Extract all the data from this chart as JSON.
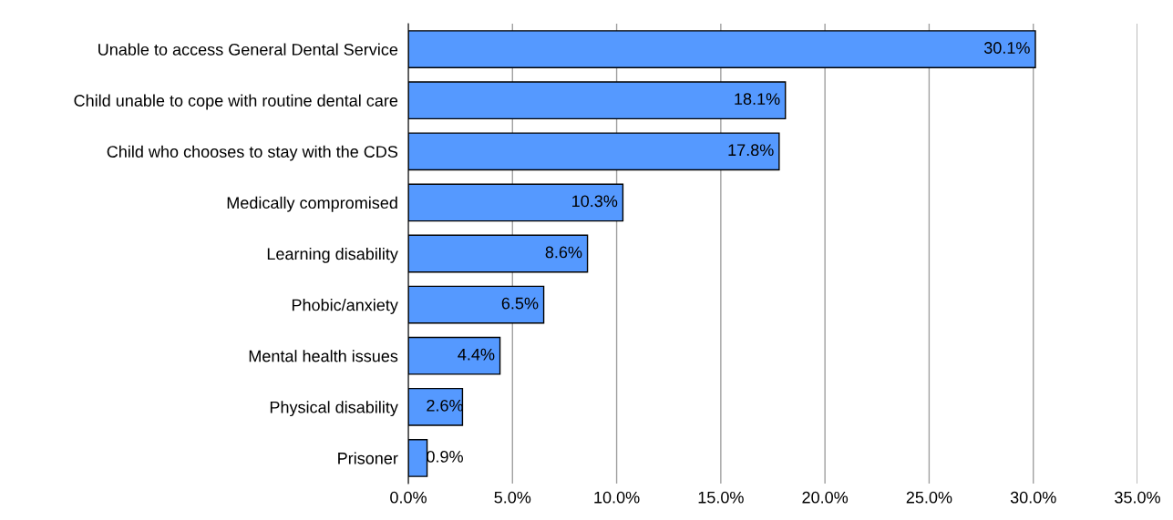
{
  "chart_data": {
    "type": "bar",
    "orientation": "horizontal",
    "categories": [
      "Unable to access General Dental Service",
      "Child unable to cope with routine dental care",
      "Child who chooses to stay with the CDS",
      "Medically compromised",
      "Learning disability",
      "Phobic/anxiety",
      "Mental health issues",
      "Physical disability",
      "Prisoner"
    ],
    "values": [
      30.1,
      18.1,
      17.8,
      10.3,
      8.6,
      6.5,
      4.4,
      2.6,
      0.9
    ],
    "value_labels": [
      "30.1%",
      "18.1%",
      "17.8%",
      "10.3%",
      "8.6%",
      "6.5%",
      "4.4%",
      "2.6%",
      "0.9%"
    ],
    "color": "#5599ff",
    "xlim": [
      0,
      35
    ],
    "xticks": [
      {
        "value": 0,
        "label": "0.0%"
      },
      {
        "value": 5,
        "label": "5.0%"
      },
      {
        "value": 10,
        "label": "10.0%"
      },
      {
        "value": 15,
        "label": "15.0%"
      },
      {
        "value": 20,
        "label": "20.0%"
      },
      {
        "value": 25,
        "label": "25.0%"
      },
      {
        "value": 30,
        "label": "30.0%"
      },
      {
        "value": 35,
        "label": "35.0%"
      }
    ],
    "grid": "x"
  }
}
